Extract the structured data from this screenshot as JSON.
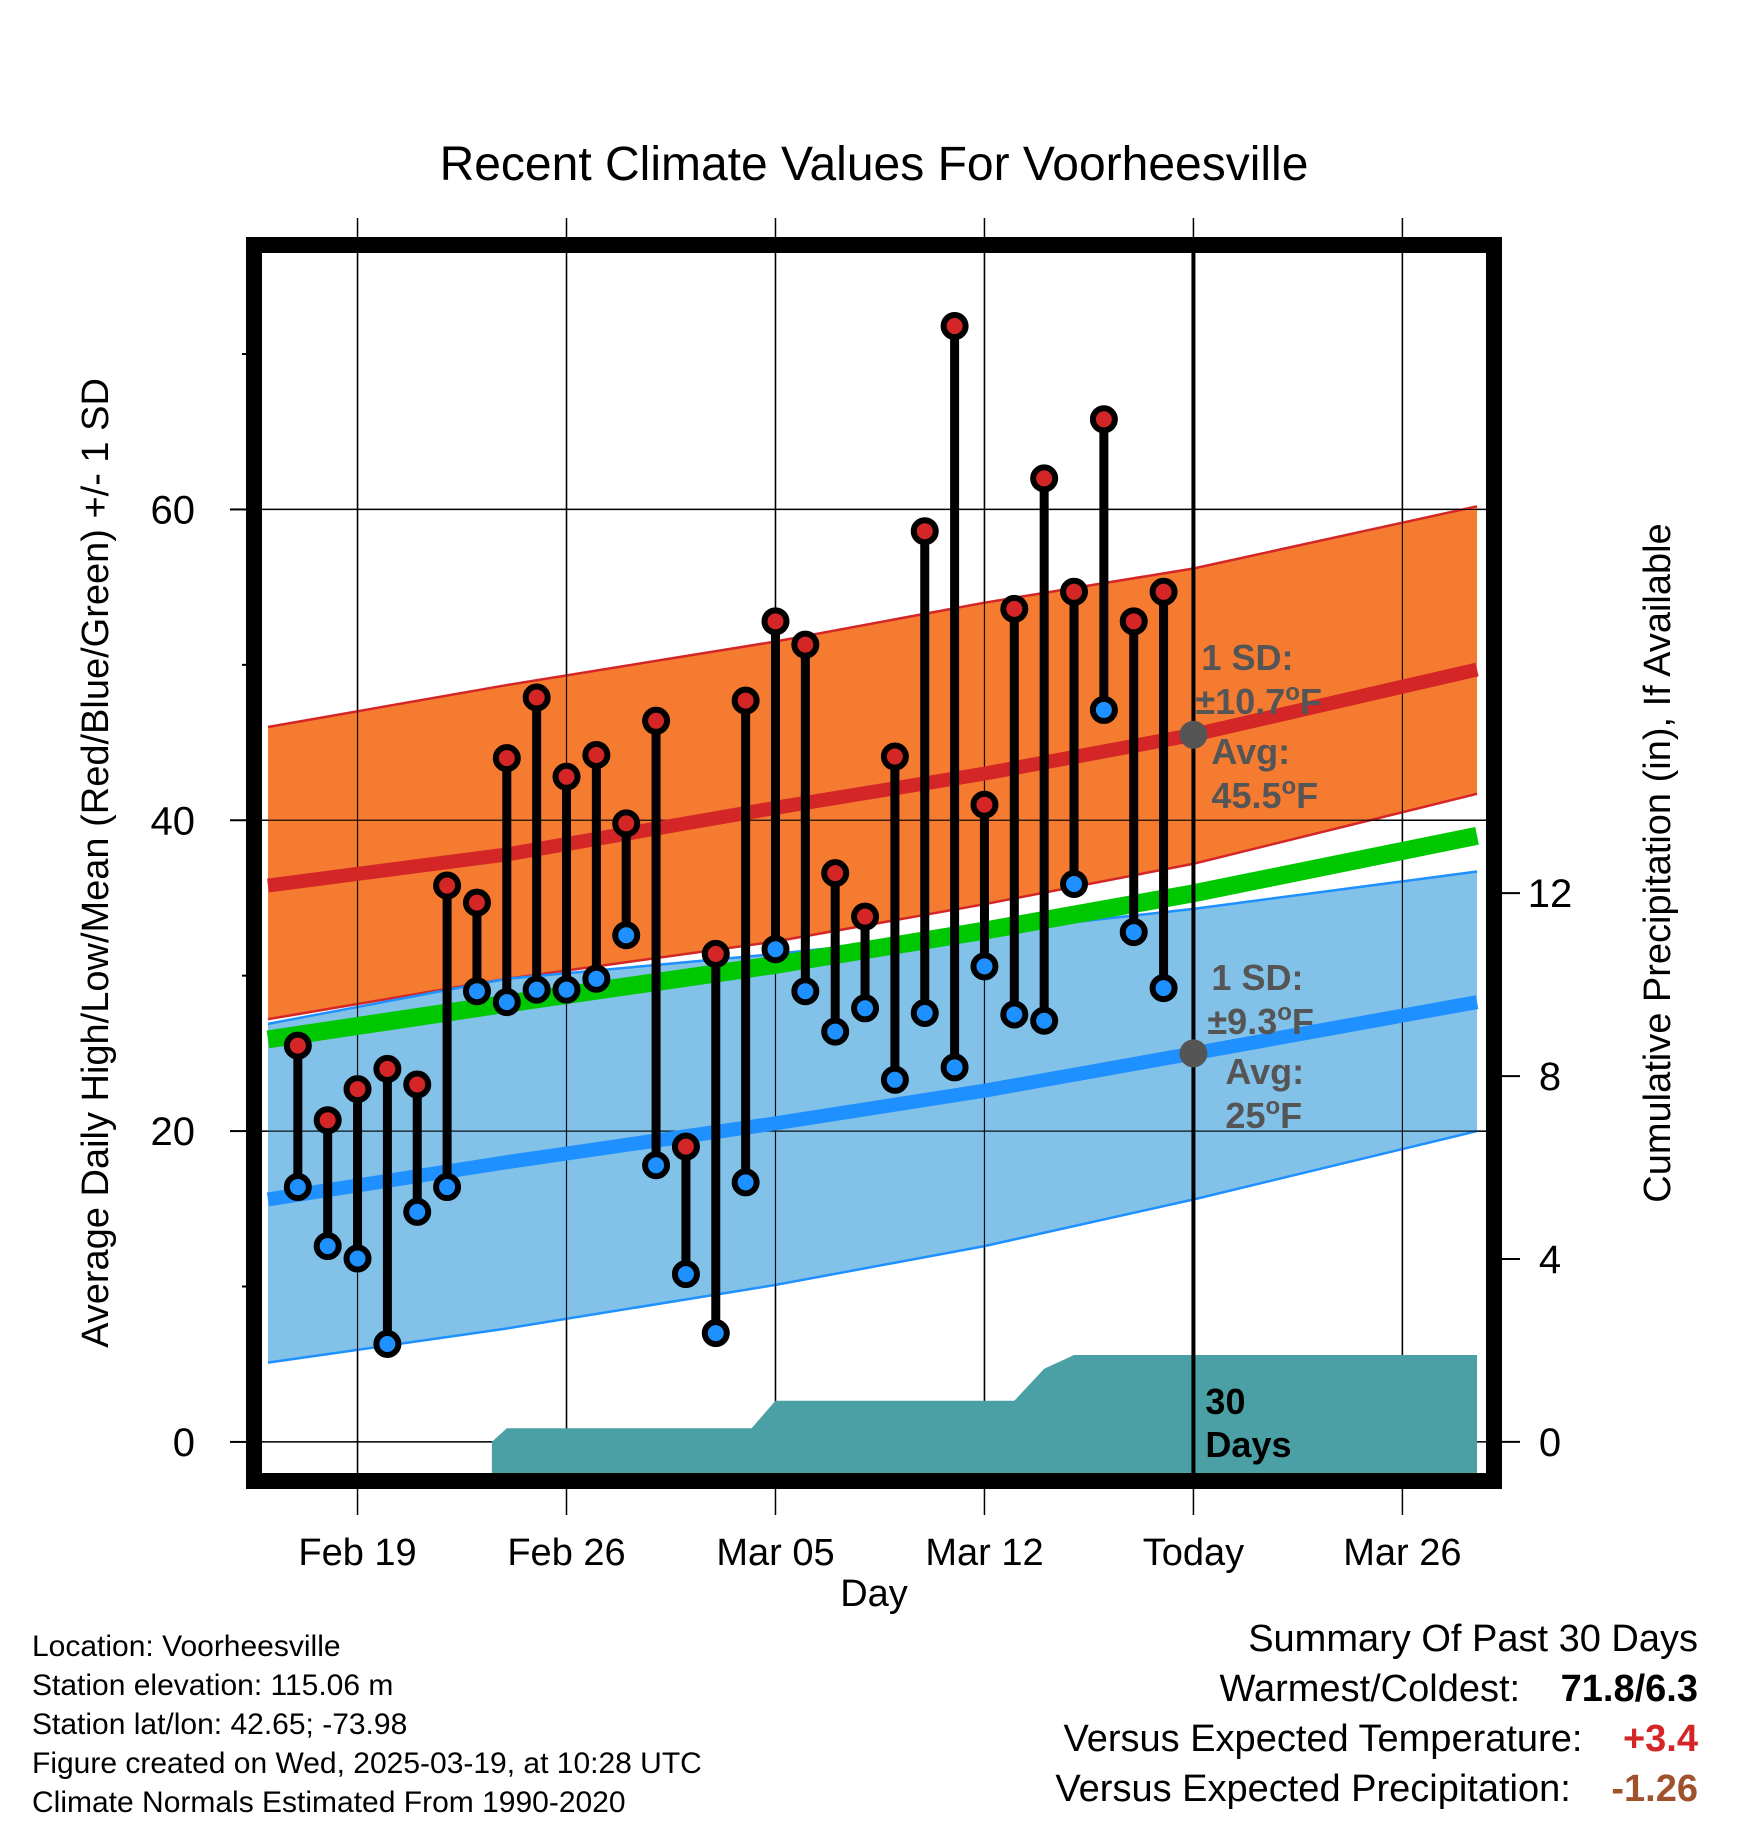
{
  "chart_data": {
    "type": "line",
    "title": "Recent Climate Values For Voorheesville",
    "xlabel": "Day",
    "ylabel": "Average Daily High/Low/Mean (Red/Blue/Green) +/- 1 SD",
    "y2label": "Cumulative Precipitation (in), If Available",
    "x_ticks": [
      {
        "day": 0,
        "label": "Feb 19"
      },
      {
        "day": 7,
        "label": "Feb 26"
      },
      {
        "day": 14,
        "label": "Mar 05"
      },
      {
        "day": 21,
        "label": "Mar 12"
      },
      {
        "day": 28,
        "label": "Today"
      },
      {
        "day": 35,
        "label": "Mar 26"
      }
    ],
    "y_ticks": [
      0,
      20,
      40,
      60
    ],
    "y2_ticks": [
      0,
      4,
      8,
      12
    ],
    "xlim": [
      -3.2,
      37.8
    ],
    "ylim": [
      -2,
      76.5
    ],
    "y2_range_inches": [
      0,
      26
    ],
    "grid": true,
    "today_day": 28,
    "obs_days": [
      -2,
      -1,
      0,
      1,
      2,
      3,
      4,
      5,
      6,
      7,
      8,
      9,
      10,
      11,
      12,
      13,
      14,
      15,
      16,
      17,
      18,
      19,
      20,
      21,
      22,
      23,
      24,
      25,
      26,
      27
    ],
    "obs_high": [
      25.5,
      20.7,
      22.7,
      24,
      23,
      35.8,
      34.7,
      44,
      47.9,
      42.8,
      44.2,
      39.8,
      46.4,
      19,
      31.4,
      47.7,
      52.8,
      51.3,
      36.6,
      33.8,
      44.1,
      58.6,
      71.8,
      41,
      53.6,
      62,
      54.7,
      65.8,
      52.8,
      54.7
    ],
    "obs_low": [
      16.4,
      12.6,
      11.8,
      6.3,
      14.8,
      16.4,
      29,
      28.3,
      29.1,
      29.1,
      29.8,
      32.6,
      17.8,
      10.8,
      7,
      16.7,
      31.7,
      29,
      26.4,
      27.9,
      23.3,
      27.6,
      24.1,
      30.6,
      27.5,
      27.1,
      35.9,
      47.1,
      32.8,
      29.2
    ],
    "normals": {
      "days": [
        -3,
        5,
        14,
        21,
        28,
        37.5
      ],
      "high_mean": [
        35.8,
        37.8,
        40.8,
        43,
        45.5,
        49.7
      ],
      "high_upper": [
        46,
        48.7,
        51.5,
        54,
        56.2,
        60.2
      ],
      "high_lower": [
        27.2,
        29.8,
        32.2,
        34.6,
        37.2,
        41.7
      ],
      "mean_line": [
        25.9,
        28.2,
        30.7,
        32.9,
        35.3,
        39
      ],
      "low_mean": [
        15.6,
        18,
        20.5,
        22.6,
        25,
        28.3
      ],
      "low_upper": [
        26.9,
        29.8,
        31.4,
        32.8,
        34.3,
        36.7
      ],
      "low_lower": [
        5.1,
        7.3,
        10.1,
        12.6,
        15.6,
        20
      ]
    },
    "precip": {
      "days": [
        4.5,
        5,
        10,
        13.2,
        14,
        22,
        23,
        24,
        29,
        37.5
      ],
      "cumulative_in": [
        0,
        0.3,
        0.3,
        0.3,
        0.9,
        0.9,
        1.6,
        1.9,
        1.9,
        1.9
      ]
    },
    "annotations": {
      "high_sd": "±10.7",
      "high_avg": "45.5",
      "low_sd": "±9.3",
      "low_avg": "25",
      "sd_label": "1 SD:",
      "avg_label": "Avg:",
      "deg_unit": "F",
      "days_label": "30",
      "days_label2": "Days"
    },
    "colors": {
      "high_band": "#f47b30",
      "high_line": "#d42626",
      "low_band": "#82c1e8",
      "low_line": "#1f90ff",
      "mean_line": "#00c800",
      "precip": "#4aa0a4",
      "high_dot": "#d42626",
      "low_dot": "#1f90ff",
      "annot": "#555555"
    }
  },
  "footer": {
    "location": "Location: Voorheesville",
    "elevation": "Station elevation: 115.06 m",
    "latlon": "Station lat/lon: 42.65; -73.98",
    "created": "Figure created on Wed, 2025-03-19, at 10:28 UTC",
    "normals": "Climate Normals Estimated From 1990-2020"
  },
  "summary": {
    "title": "Summary Of Past 30 Days",
    "warm_cold_label": "Warmest/Coldest:",
    "warm_cold_value": "71.8/6.3",
    "temp_label": "Versus Expected Temperature:",
    "temp_value": "+3.4",
    "temp_color": "#d42626",
    "precip_label": "Versus Expected Precipitation:",
    "precip_value": "-1.26",
    "precip_color": "#a0522d"
  }
}
